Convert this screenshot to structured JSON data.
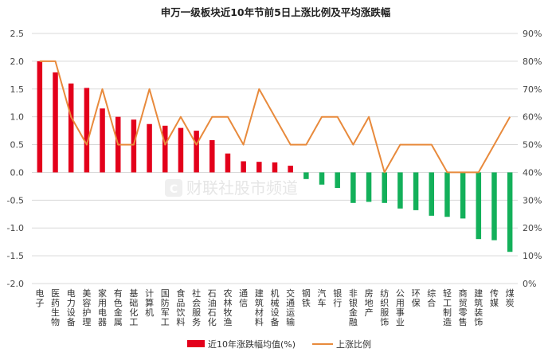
{
  "chart_data": {
    "type": "bar+line",
    "title": "申万一级板块近10年节前5日上涨比例及平均涨跌幅",
    "categories": [
      "电子",
      "医药生物",
      "电力设备",
      "美容护理",
      "家用电器",
      "有色金属",
      "基础化工",
      "计算机",
      "国防军工",
      "食品饮料",
      "社会服务",
      "石油石化",
      "农林牧渔",
      "通信",
      "建筑材料",
      "机械设备",
      "交通运输",
      "钢铁",
      "汽车",
      "银行",
      "非银金融",
      "房地产",
      "纺织服饰",
      "公用事业",
      "环保",
      "综合",
      "轻工制造",
      "商贸零售",
      "建筑装饰",
      "传媒",
      "煤炭"
    ],
    "series": [
      {
        "name": "近10年涨跌幅均值(%)",
        "type": "bar",
        "axis": "left",
        "values": [
          2.0,
          1.8,
          1.6,
          1.52,
          1.15,
          1.0,
          0.95,
          0.87,
          0.84,
          0.8,
          0.75,
          0.58,
          0.34,
          0.2,
          0.19,
          0.18,
          0.12,
          -0.12,
          -0.22,
          -0.28,
          -0.55,
          -0.53,
          -0.55,
          -0.65,
          -0.68,
          -0.78,
          -0.8,
          -0.83,
          -1.2,
          -1.22,
          -1.43
        ]
      },
      {
        "name": "上涨比例",
        "type": "line",
        "axis": "right",
        "values": [
          80,
          80,
          60,
          50,
          70,
          50,
          50,
          70,
          50,
          60,
          50,
          60,
          60,
          50,
          70,
          60,
          50,
          50,
          60,
          60,
          50,
          60,
          40,
          50,
          50,
          50,
          40,
          40,
          40,
          50,
          60
        ]
      }
    ],
    "y_left": {
      "min": -2.0,
      "max": 2.5,
      "step": 0.5,
      "ticks": [
        "-2.0",
        "-1.5",
        "-1.0",
        "-0.5",
        "0.0",
        "0.5",
        "1.0",
        "1.5",
        "2.0",
        "2.5"
      ]
    },
    "y_right": {
      "min": 0,
      "max": 90,
      "step": 10,
      "ticks": [
        "0%",
        "10%",
        "20%",
        "30%",
        "40%",
        "50%",
        "60%",
        "70%",
        "80%",
        "90%"
      ]
    },
    "grid": true,
    "legend_position": "bottom",
    "colors": {
      "positive": "#e3001b",
      "negative": "#13b05a",
      "line": "#e88a3c",
      "grid": "#d9d9d9"
    }
  },
  "watermark": "财联社股市频道"
}
